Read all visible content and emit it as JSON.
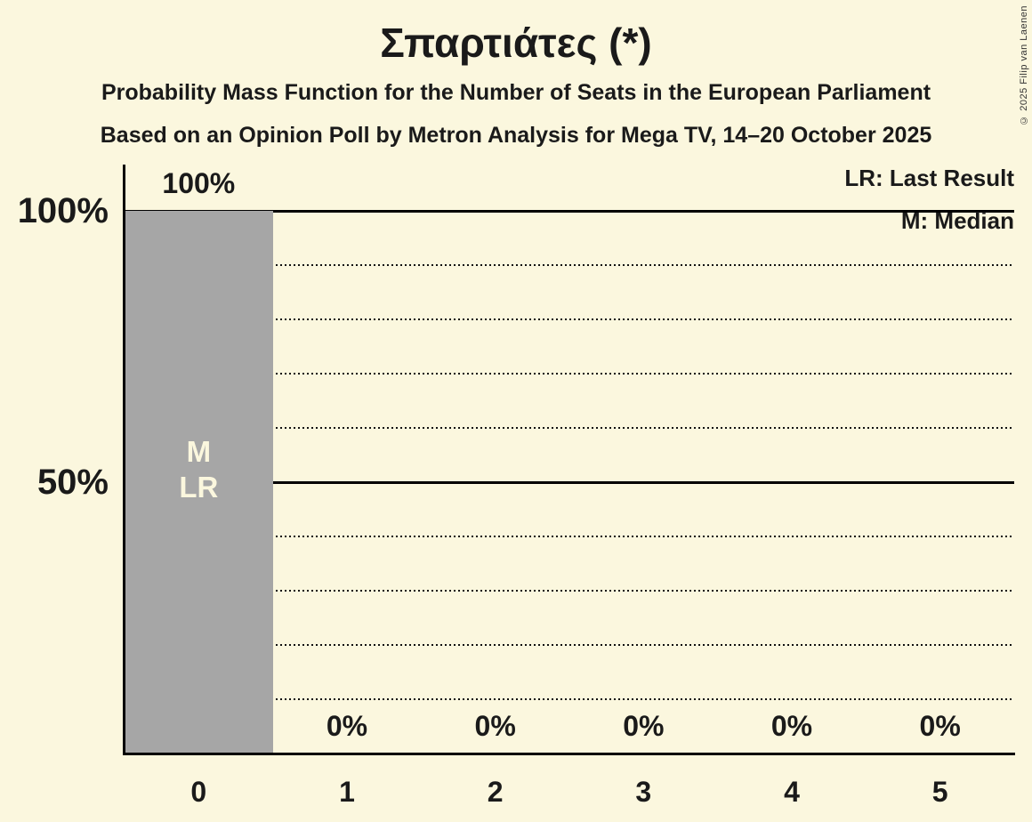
{
  "copyright": "© 2025 Filip van Laenen",
  "chart_data": {
    "type": "bar",
    "title": "Σπαρτιάτες (*)",
    "subtitle": "Probability Mass Function for the Number of Seats in the European Parliament",
    "source_line": "Based on an Opinion Poll by Metron Analysis for Mega TV, 14–20 October 2025",
    "xlabel": "",
    "ylabel": "",
    "categories": [
      "0",
      "1",
      "2",
      "3",
      "4",
      "5"
    ],
    "values": [
      100,
      0,
      0,
      0,
      0,
      0
    ],
    "bar_labels": [
      "100%",
      "0%",
      "0%",
      "0%",
      "0%",
      "0%"
    ],
    "ylim": [
      0,
      100
    ],
    "y_tick_labels": [
      {
        "value": 100,
        "label": "100%"
      },
      {
        "value": 50,
        "label": "50%"
      }
    ],
    "y_solid_gridlines": [
      100,
      50
    ],
    "y_dotted_gridlines": [
      90,
      80,
      70,
      60,
      40,
      30,
      20,
      10
    ],
    "legend": [
      "LR: Last Result",
      "M: Median"
    ],
    "median_category": 0,
    "last_result_category": 0,
    "bar_annotation_lines": [
      "M",
      "LR"
    ],
    "grid": "horizontal-only",
    "legend_position": "top-right",
    "bar_color": "#a6a6a6",
    "background_color": "#fbf7de",
    "annotation_text_color": "#fbf7de",
    "line_color": "#000000",
    "text_color": "#1a1a1a"
  }
}
